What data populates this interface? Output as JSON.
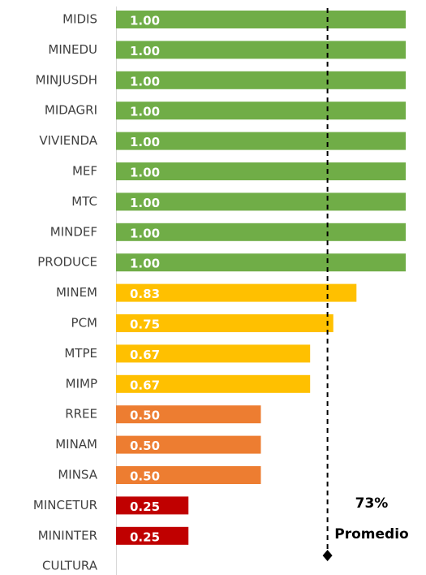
{
  "chart_data": {
    "type": "bar",
    "orientation": "horizontal",
    "categories": [
      "MIDIS",
      "MINEDU",
      "MINJUSDH",
      "MIDAGRI",
      "VIVIENDA",
      "MEF",
      "MTC",
      "MINDEF",
      "PRODUCE",
      "MINEM",
      "PCM",
      "MTPE",
      "MIMP",
      "RREE",
      "MINAM",
      "MINSA",
      "MINCETUR",
      "MININTER",
      "CULTURA"
    ],
    "values": [
      1,
      1,
      1,
      1,
      1,
      1,
      1,
      1,
      1,
      0.83,
      0.75,
      0.67,
      0.67,
      0.5,
      0.5,
      0.5,
      0.25,
      0.25,
      0
    ],
    "value_labels": [
      "1.00",
      "1.00",
      "1.00",
      "1.00",
      "1.00",
      "1.00",
      "1.00",
      "1.00",
      "1.00",
      "0.83",
      "0.75",
      "0.67",
      "0.67",
      "0.50",
      "0.50",
      "0.50",
      "0.25",
      "0.25",
      null
    ],
    "colors": [
      "#70ad47",
      "#70ad47",
      "#70ad47",
      "#70ad47",
      "#70ad47",
      "#70ad47",
      "#70ad47",
      "#70ad47",
      "#70ad47",
      "#ffc000",
      "#ffc000",
      "#ffc000",
      "#ffc000",
      "#ed7d31",
      "#ed7d31",
      "#ed7d31",
      "#c00000",
      "#c00000",
      "#c00000"
    ],
    "xlim": [
      0,
      1
    ],
    "average": {
      "value": 0.73,
      "label": "73%",
      "text": "Promedio"
    }
  }
}
